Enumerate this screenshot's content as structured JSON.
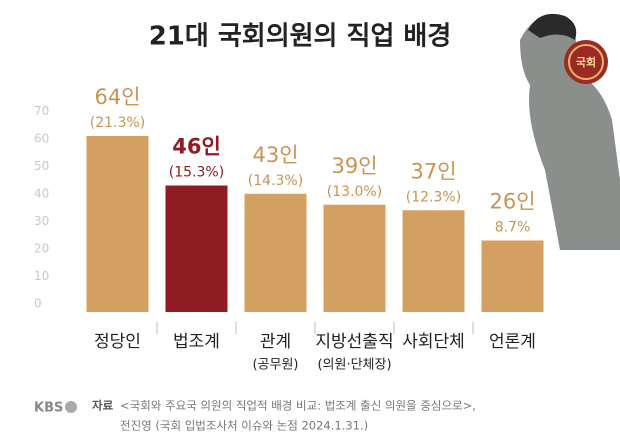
{
  "chart_data": {
    "type": "bar",
    "title": "21대 국회의원의 직업 배경",
    "categories": [
      "정당인",
      "법조계",
      "관계",
      "지방선출직",
      "사회단체",
      "언론계"
    ],
    "category_sublabels": [
      null,
      null,
      "(공무원)",
      "(의원·단체장)",
      null,
      null
    ],
    "values": [
      64,
      46,
      43,
      39,
      37,
      26
    ],
    "value_labels": [
      "64인",
      "46인",
      "43인",
      "39인",
      "37인",
      "26인"
    ],
    "shares": [
      21.3,
      15.3,
      14.3,
      13.0,
      12.3,
      8.7
    ],
    "share_labels": [
      "(21.3%)",
      "(15.3%)",
      "(14.3%)",
      "(13.0%)",
      "(12.3%)",
      "8.7%"
    ],
    "colors": [
      "#d4a062",
      "#8e1c22",
      "#d4a062",
      "#d4a062",
      "#d4a062",
      "#d4a062"
    ],
    "label_colors": [
      "#c99453",
      "#8e1c22",
      "#c99453",
      "#c99453",
      "#c99453",
      "#c99453"
    ],
    "ylim": [
      0,
      70
    ],
    "yticks": [
      0,
      10,
      20,
      30,
      40,
      50,
      60,
      70
    ],
    "grid": false,
    "emblem_text": "국회",
    "logo": "KBS",
    "source_label": "자료",
    "source_lines": [
      "<국회와 주요국 의원의 직업적 배경 비교: 법조계 출신 의원을 중심으로>,",
      "전진영 (국회 입법조사처 이슈와 논점 2024.1.31.)"
    ]
  }
}
